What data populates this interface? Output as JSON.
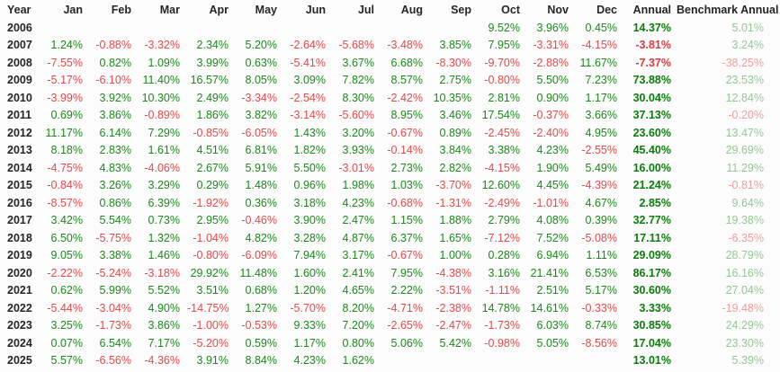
{
  "colors": {
    "background": "#fcfcfc",
    "text": "#262626",
    "positive": "#1e871e",
    "negative": "#e04b4b",
    "annual_positive": "#0b7d0b",
    "annual_negative": "#dc3c3c",
    "benchmark_positive": "#93c893",
    "benchmark_negative": "#f29b9b"
  },
  "chart_data": {
    "type": "table",
    "columns": [
      "Year",
      "Jan",
      "Feb",
      "Mar",
      "Apr",
      "May",
      "Jun",
      "Jul",
      "Aug",
      "Sep",
      "Oct",
      "Nov",
      "Dec",
      "Annual",
      "Benchmark Annual"
    ],
    "rows": [
      {
        "year": "2006",
        "months": [
          "",
          "",
          "",
          "",
          "",
          "",
          "",
          "",
          "",
          "9.52%",
          "3.96%",
          "0.45%"
        ],
        "annual": "14.37%",
        "benchmark": "5.01%"
      },
      {
        "year": "2007",
        "months": [
          "1.24%",
          "-0.88%",
          "-3.32%",
          "2.34%",
          "5.20%",
          "-2.64%",
          "-5.68%",
          "-3.48%",
          "3.85%",
          "7.95%",
          "-3.31%",
          "-4.15%"
        ],
        "annual": "-3.81%",
        "benchmark": "3.24%"
      },
      {
        "year": "2008",
        "months": [
          "-7.55%",
          "0.82%",
          "1.09%",
          "3.99%",
          "0.63%",
          "-5.41%",
          "3.67%",
          "6.68%",
          "-8.30%",
          "-9.70%",
          "-2.88%",
          "11.67%"
        ],
        "annual": "-7.37%",
        "benchmark": "-38.25%"
      },
      {
        "year": "2009",
        "months": [
          "-5.17%",
          "-6.10%",
          "11.40%",
          "16.57%",
          "8.05%",
          "3.09%",
          "7.82%",
          "8.57%",
          "2.75%",
          "-0.80%",
          "5.50%",
          "7.23%"
        ],
        "annual": "73.88%",
        "benchmark": "23.53%"
      },
      {
        "year": "2010",
        "months": [
          "-3.99%",
          "3.92%",
          "10.30%",
          "2.49%",
          "-3.34%",
          "-2.54%",
          "8.30%",
          "-2.42%",
          "10.35%",
          "2.81%",
          "0.90%",
          "1.17%"
        ],
        "annual": "30.04%",
        "benchmark": "12.84%"
      },
      {
        "year": "2011",
        "months": [
          "0.69%",
          "3.86%",
          "-0.89%",
          "1.86%",
          "3.82%",
          "-3.14%",
          "-5.60%",
          "8.95%",
          "3.46%",
          "17.54%",
          "-0.37%",
          "3.66%"
        ],
        "annual": "37.13%",
        "benchmark": "-0.20%"
      },
      {
        "year": "2012",
        "months": [
          "11.17%",
          "6.14%",
          "7.29%",
          "-0.85%",
          "-6.05%",
          "1.43%",
          "3.20%",
          "-0.67%",
          "0.89%",
          "-2.45%",
          "-2.40%",
          "4.95%"
        ],
        "annual": "23.60%",
        "benchmark": "13.47%"
      },
      {
        "year": "2013",
        "months": [
          "8.18%",
          "2.83%",
          "1.61%",
          "4.51%",
          "6.81%",
          "1.82%",
          "3.93%",
          "-0.14%",
          "3.84%",
          "3.38%",
          "4.23%",
          "-2.55%"
        ],
        "annual": "45.40%",
        "benchmark": "29.69%"
      },
      {
        "year": "2014",
        "months": [
          "-4.75%",
          "4.83%",
          "-4.06%",
          "2.67%",
          "5.91%",
          "5.50%",
          "-3.01%",
          "2.73%",
          "2.82%",
          "-4.15%",
          "1.90%",
          "5.49%"
        ],
        "annual": "16.00%",
        "benchmark": "11.29%"
      },
      {
        "year": "2015",
        "months": [
          "-0.84%",
          "3.26%",
          "3.29%",
          "0.29%",
          "1.48%",
          "0.96%",
          "1.98%",
          "1.03%",
          "-3.70%",
          "12.60%",
          "4.45%",
          "-4.39%"
        ],
        "annual": "21.24%",
        "benchmark": "-0.81%"
      },
      {
        "year": "2016",
        "months": [
          "-8.57%",
          "0.86%",
          "6.39%",
          "-1.92%",
          "0.36%",
          "3.18%",
          "4.23%",
          "-0.68%",
          "-1.31%",
          "-2.49%",
          "-1.01%",
          "4.67%"
        ],
        "annual": "2.85%",
        "benchmark": "9.64%"
      },
      {
        "year": "2017",
        "months": [
          "3.42%",
          "5.54%",
          "0.73%",
          "2.95%",
          "-0.46%",
          "3.90%",
          "2.47%",
          "1.15%",
          "1.88%",
          "2.79%",
          "4.08%",
          "0.39%"
        ],
        "annual": "32.77%",
        "benchmark": "19.38%"
      },
      {
        "year": "2018",
        "months": [
          "6.50%",
          "-5.75%",
          "1.32%",
          "-1.04%",
          "4.82%",
          "3.28%",
          "4.87%",
          "6.37%",
          "1.65%",
          "-7.12%",
          "7.52%",
          "-5.08%"
        ],
        "annual": "17.11%",
        "benchmark": "-6.35%"
      },
      {
        "year": "2019",
        "months": [
          "9.05%",
          "3.38%",
          "1.46%",
          "-0.80%",
          "-6.09%",
          "7.94%",
          "3.17%",
          "-0.67%",
          "1.00%",
          "0.28%",
          "6.94%",
          "1.11%"
        ],
        "annual": "29.09%",
        "benchmark": "28.79%"
      },
      {
        "year": "2020",
        "months": [
          "-2.22%",
          "-5.24%",
          "-3.18%",
          "29.92%",
          "11.48%",
          "1.60%",
          "2.41%",
          "7.95%",
          "-4.38%",
          "3.16%",
          "21.41%",
          "6.53%"
        ],
        "annual": "86.17%",
        "benchmark": "16.16%"
      },
      {
        "year": "2021",
        "months": [
          "0.62%",
          "5.99%",
          "5.52%",
          "3.51%",
          "0.68%",
          "1.20%",
          "4.65%",
          "2.22%",
          "-3.51%",
          "-1.11%",
          "2.51%",
          "5.17%"
        ],
        "annual": "30.60%",
        "benchmark": "27.04%"
      },
      {
        "year": "2022",
        "months": [
          "-5.44%",
          "-3.04%",
          "4.90%",
          "-14.75%",
          "1.27%",
          "-5.70%",
          "8.20%",
          "-4.71%",
          "-2.38%",
          "14.78%",
          "14.61%",
          "-0.33%"
        ],
        "annual": "3.33%",
        "benchmark": "-19.48%"
      },
      {
        "year": "2023",
        "months": [
          "3.25%",
          "-1.73%",
          "3.86%",
          "-1.00%",
          "-0.53%",
          "9.33%",
          "7.20%",
          "-2.65%",
          "-2.47%",
          "-1.73%",
          "6.03%",
          "8.74%"
        ],
        "annual": "30.85%",
        "benchmark": "24.29%"
      },
      {
        "year": "2024",
        "months": [
          "0.07%",
          "6.54%",
          "7.17%",
          "-5.20%",
          "0.59%",
          "1.17%",
          "0.80%",
          "5.06%",
          "5.42%",
          "-0.98%",
          "5.05%",
          "-8.56%"
        ],
        "annual": "17.04%",
        "benchmark": "23.30%"
      },
      {
        "year": "2025",
        "months": [
          "5.57%",
          "-6.56%",
          "-4.36%",
          "3.91%",
          "8.84%",
          "4.23%",
          "1.62%",
          "",
          "",
          "",
          "",
          ""
        ],
        "annual": "13.01%",
        "benchmark": "5.39%"
      }
    ]
  }
}
